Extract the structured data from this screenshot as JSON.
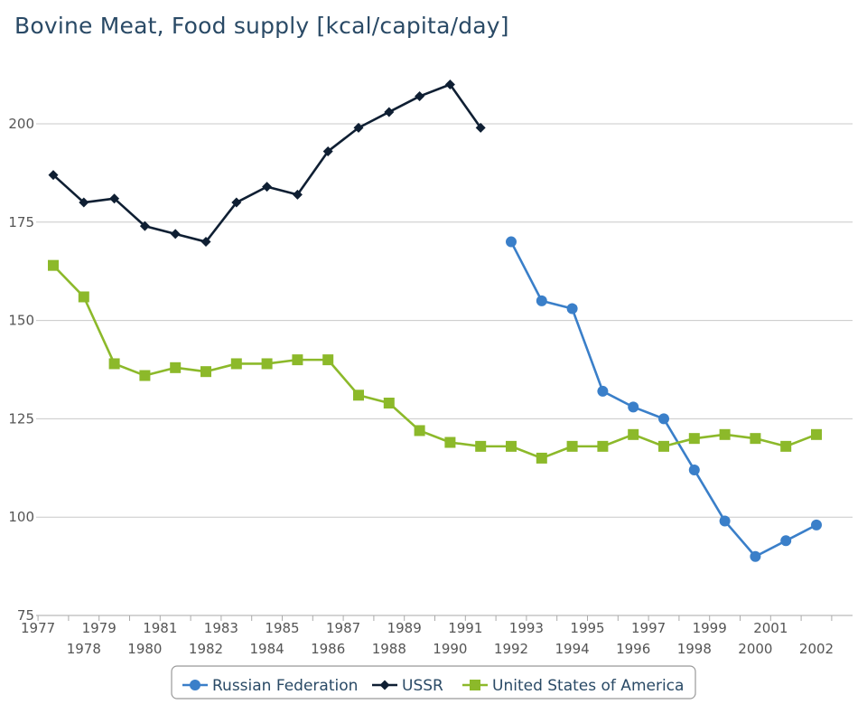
{
  "chart_data": {
    "type": "line",
    "title": "Bovine Meat, Food supply [kcal/capita/day]",
    "xlabel": "",
    "ylabel": "",
    "x_categories": [
      "1977",
      "1978",
      "1979",
      "1980",
      "1981",
      "1982",
      "1983",
      "1984",
      "1985",
      "1986",
      "1987",
      "1988",
      "1989",
      "1990",
      "1991",
      "1992",
      "1993",
      "1994",
      "1995",
      "1996",
      "1997",
      "1998",
      "1999",
      "2000",
      "2001",
      "2002"
    ],
    "ylim": [
      75,
      215
    ],
    "y_ticks": [
      75,
      100,
      125,
      150,
      175,
      200
    ],
    "grid": true,
    "legend_position": "bottom",
    "series": [
      {
        "name": "Russian Federation",
        "color": "#3a7fc9",
        "marker": "circle",
        "points": [
          {
            "x": "1992",
            "y": 170
          },
          {
            "x": "1993",
            "y": 155
          },
          {
            "x": "1994",
            "y": 153
          },
          {
            "x": "1995",
            "y": 132
          },
          {
            "x": "1996",
            "y": 128
          },
          {
            "x": "1997",
            "y": 125
          },
          {
            "x": "1998",
            "y": 112
          },
          {
            "x": "1999",
            "y": 99
          },
          {
            "x": "2000",
            "y": 90
          },
          {
            "x": "2001",
            "y": 94
          },
          {
            "x": "2002",
            "y": 98
          }
        ]
      },
      {
        "name": "USSR",
        "color": "#0f1f33",
        "marker": "diamond",
        "points": [
          {
            "x": "1977",
            "y": 187
          },
          {
            "x": "1978",
            "y": 180
          },
          {
            "x": "1979",
            "y": 181
          },
          {
            "x": "1980",
            "y": 174
          },
          {
            "x": "1981",
            "y": 172
          },
          {
            "x": "1982",
            "y": 170
          },
          {
            "x": "1983",
            "y": 180
          },
          {
            "x": "1984",
            "y": 184
          },
          {
            "x": "1985",
            "y": 182
          },
          {
            "x": "1986",
            "y": 193
          },
          {
            "x": "1987",
            "y": 199
          },
          {
            "x": "1988",
            "y": 203
          },
          {
            "x": "1989",
            "y": 207
          },
          {
            "x": "1990",
            "y": 210
          },
          {
            "x": "1991",
            "y": 199
          }
        ]
      },
      {
        "name": "United States of America",
        "color": "#8cb92a",
        "marker": "square",
        "points": [
          {
            "x": "1977",
            "y": 164
          },
          {
            "x": "1978",
            "y": 156
          },
          {
            "x": "1979",
            "y": 139
          },
          {
            "x": "1980",
            "y": 136
          },
          {
            "x": "1981",
            "y": 138
          },
          {
            "x": "1982",
            "y": 137
          },
          {
            "x": "1983",
            "y": 139
          },
          {
            "x": "1984",
            "y": 139
          },
          {
            "x": "1985",
            "y": 140
          },
          {
            "x": "1986",
            "y": 140
          },
          {
            "x": "1987",
            "y": 131
          },
          {
            "x": "1988",
            "y": 129
          },
          {
            "x": "1989",
            "y": 122
          },
          {
            "x": "1990",
            "y": 119
          },
          {
            "x": "1991",
            "y": 118
          },
          {
            "x": "1992",
            "y": 118
          },
          {
            "x": "1993",
            "y": 115
          },
          {
            "x": "1994",
            "y": 118
          },
          {
            "x": "1995",
            "y": 118
          },
          {
            "x": "1996",
            "y": 121
          },
          {
            "x": "1997",
            "y": 118
          },
          {
            "x": "1998",
            "y": 120
          },
          {
            "x": "1999",
            "y": 121
          },
          {
            "x": "2000",
            "y": 120
          },
          {
            "x": "2001",
            "y": 118
          },
          {
            "x": "2002",
            "y": 121
          }
        ]
      }
    ]
  }
}
